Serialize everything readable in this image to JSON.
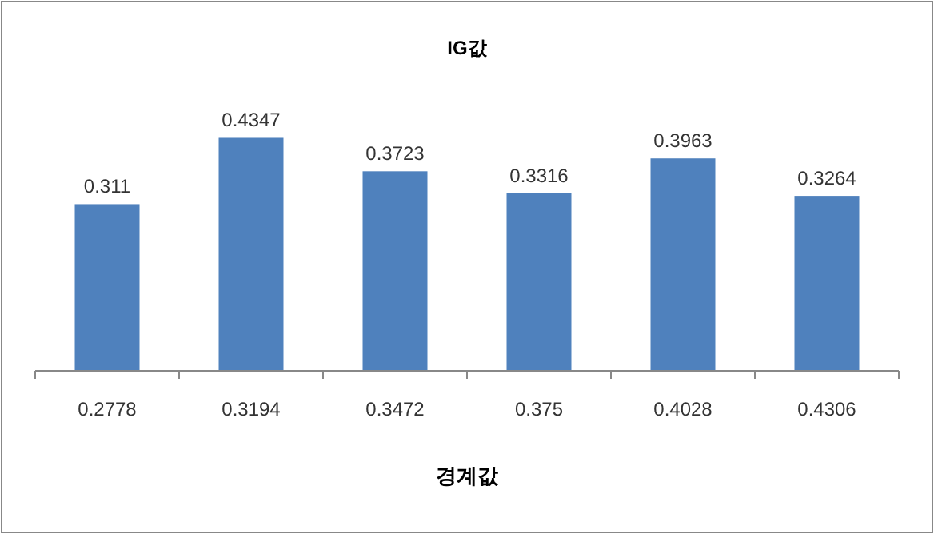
{
  "chart_data": {
    "type": "bar",
    "title": "IG값",
    "xlabel": "경계값",
    "categories": [
      "0.2778",
      "0.3194",
      "0.3472",
      "0.375",
      "0.4028",
      "0.4306"
    ],
    "values": [
      0.311,
      0.4347,
      0.3723,
      0.3316,
      0.3963,
      0.3264
    ],
    "color": "#4f81bd",
    "data_labels": true
  }
}
